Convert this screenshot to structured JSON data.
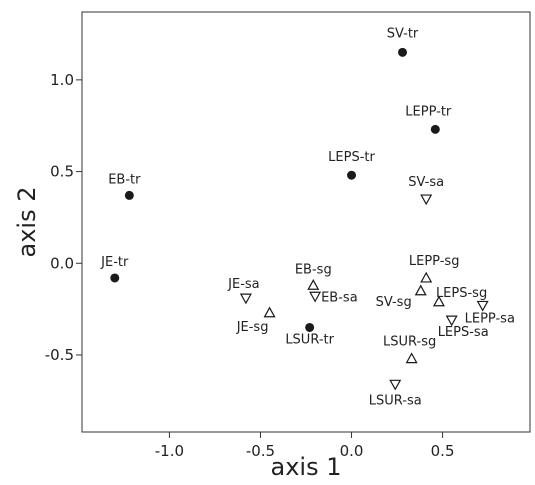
{
  "chart_data": {
    "type": "scatter",
    "xlabel": "axis 1",
    "ylabel": "axis 2",
    "xlim": [
      -1.48,
      0.98
    ],
    "ylim": [
      -0.92,
      1.37
    ],
    "x_ticks": [
      -1.0,
      -0.5,
      0.0,
      0.5
    ],
    "y_ticks": [
      -0.5,
      0.0,
      0.5,
      1.0
    ],
    "x_tick_labels": [
      "-1.0",
      "-0.5",
      "0.0",
      "0.5"
    ],
    "y_tick_labels": [
      "-0.5",
      "0.0",
      "0.5",
      "1.0"
    ],
    "grid": false,
    "legend": "none",
    "colors": {
      "marker": "#1a1a1a",
      "axis": "#333333",
      "text": "#222222"
    },
    "marker_types": [
      "filled-circle",
      "open-triangle-down",
      "open-triangle-up"
    ],
    "points": [
      {
        "label": "SV-tr",
        "x": 0.28,
        "y": 1.15,
        "marker": "filled-circle"
      },
      {
        "label": "LEPP-tr",
        "x": 0.46,
        "y": 0.73,
        "marker": "filled-circle"
      },
      {
        "label": "LEPS-tr",
        "x": 0.0,
        "y": 0.48,
        "marker": "filled-circle"
      },
      {
        "label": "EB-tr",
        "x": -1.22,
        "y": 0.37,
        "marker": "filled-circle"
      },
      {
        "label": "JE-tr",
        "x": -1.3,
        "y": -0.08,
        "marker": "filled-circle"
      },
      {
        "label": "LSUR-tr",
        "x": -0.23,
        "y": -0.35,
        "marker": "filled-circle"
      },
      {
        "label": "SV-sa",
        "x": 0.41,
        "y": 0.35,
        "marker": "open-triangle-down"
      },
      {
        "label": "JE-sa",
        "x": -0.58,
        "y": -0.19,
        "marker": "open-triangle-down"
      },
      {
        "label": "EB-sa",
        "x": -0.2,
        "y": -0.18,
        "marker": "open-triangle-down"
      },
      {
        "label": "LEPS-sa",
        "x": 0.55,
        "y": -0.31,
        "marker": "open-triangle-down"
      },
      {
        "label": "LEPP-sa",
        "x": 0.72,
        "y": -0.23,
        "marker": "open-triangle-down"
      },
      {
        "label": "LSUR-sa",
        "x": 0.24,
        "y": -0.66,
        "marker": "open-triangle-down"
      },
      {
        "label": "EB-sg",
        "x": -0.21,
        "y": -0.12,
        "marker": "open-triangle-up"
      },
      {
        "label": "JE-sg",
        "x": -0.45,
        "y": -0.27,
        "marker": "open-triangle-up"
      },
      {
        "label": "LEPP-sg",
        "x": 0.41,
        "y": -0.08,
        "marker": "open-triangle-up"
      },
      {
        "label": "SV-sg",
        "x": 0.38,
        "y": -0.15,
        "marker": "open-triangle-up"
      },
      {
        "label": "LEPS-sg",
        "x": 0.48,
        "y": -0.21,
        "marker": "open-triangle-up"
      },
      {
        "label": "LSUR-sg",
        "x": 0.33,
        "y": -0.52,
        "marker": "open-triangle-up"
      }
    ]
  }
}
